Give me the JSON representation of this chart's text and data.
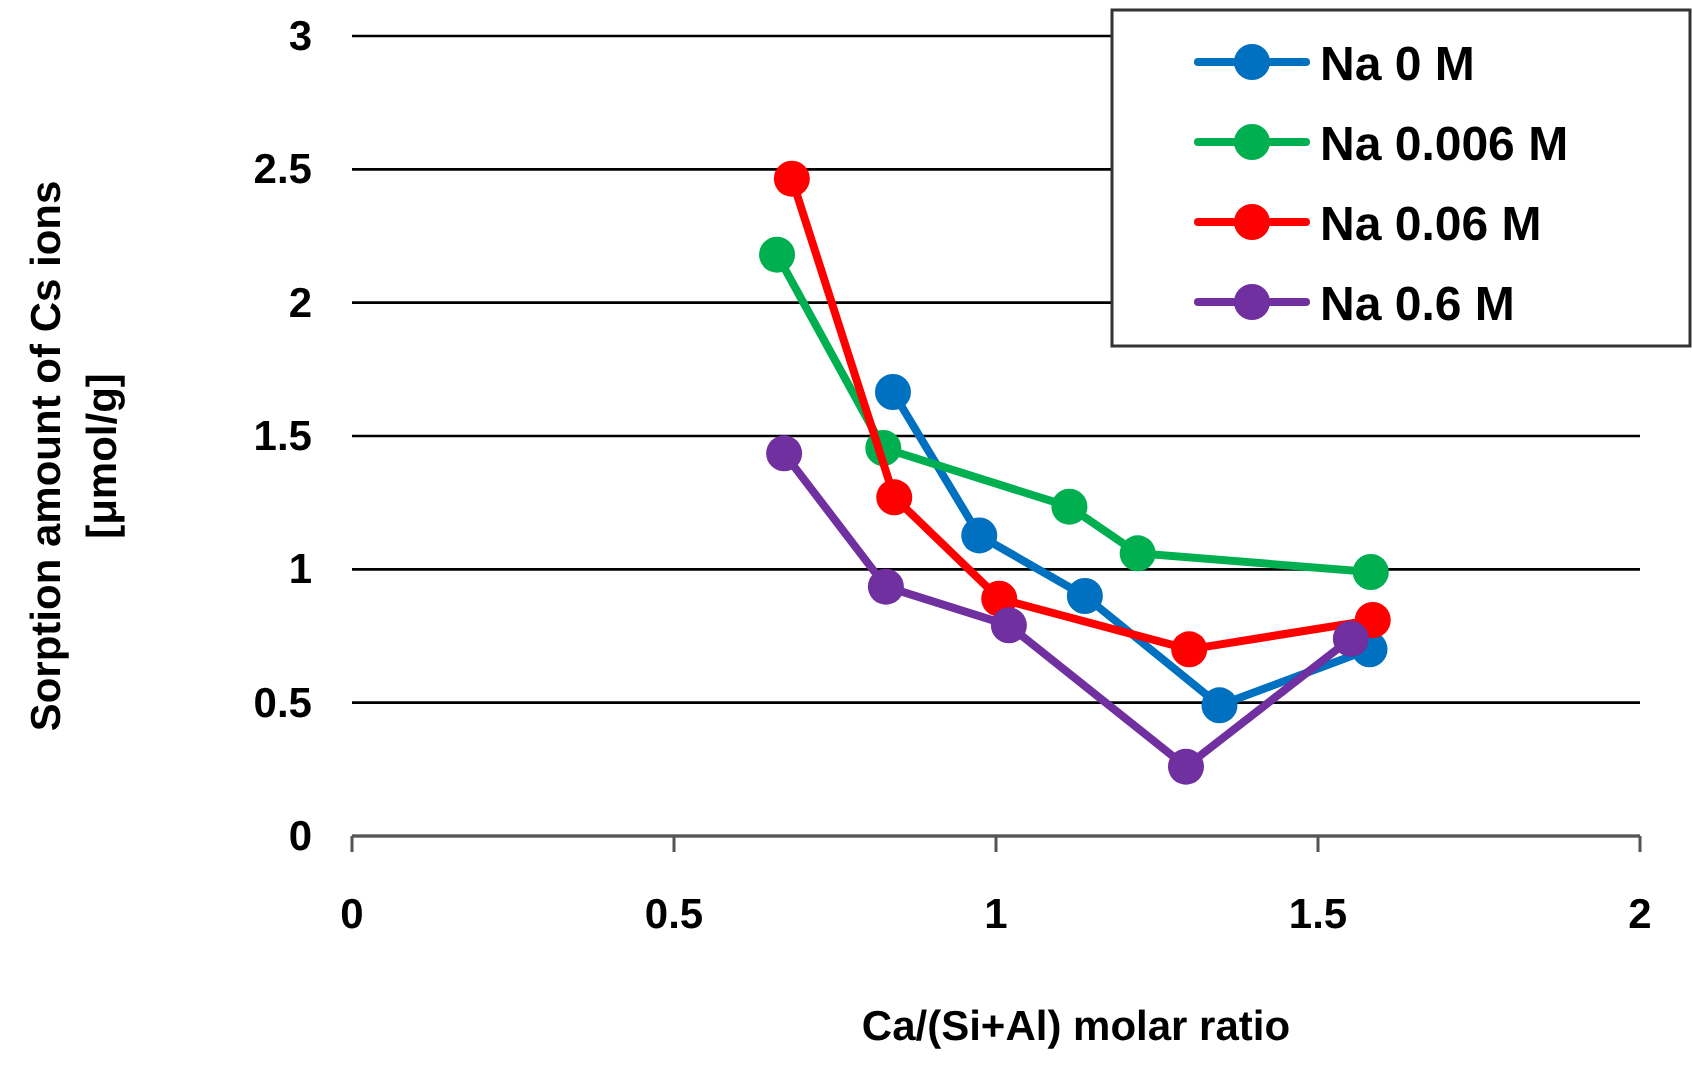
{
  "chart_data": {
    "type": "line",
    "xlabel": "Ca/(Si+Al) molar ratio",
    "ylabel": "Sorption amount of Cs ions\n[μmol/g]",
    "xlim": [
      0,
      2
    ],
    "xticks": [
      0,
      0.5,
      1,
      1.5,
      2
    ],
    "ylim": [
      0,
      3
    ],
    "yticks": [
      0,
      0.5,
      1,
      1.5,
      2,
      2.5,
      3
    ],
    "grid": "y",
    "legend": "top right",
    "marker": "circle",
    "line_style": "solid",
    "series": [
      {
        "name": "Na 0 M",
        "color": "#0070c0",
        "x": [
          0.84,
          0.974,
          1.138,
          1.347,
          1.58
        ],
        "values": [
          1.665,
          1.127,
          0.9,
          0.49,
          0.7
        ]
      },
      {
        "name": "Na 0.006 M",
        "color": "#00b050",
        "x": [
          0.66,
          0.825,
          1.114,
          1.22,
          1.582
        ],
        "values": [
          2.18,
          1.455,
          1.235,
          1.06,
          0.99
        ]
      },
      {
        "name": "Na 0.06 M",
        "color": "#ff0000",
        "x": [
          0.683,
          0.842,
          1.005,
          1.3,
          1.585
        ],
        "values": [
          2.465,
          1.27,
          0.89,
          0.7,
          0.81
        ]
      },
      {
        "name": "Na 0.6 M",
        "color": "#7030a0",
        "x": [
          0.671,
          0.829,
          1.02,
          1.295,
          1.551
        ],
        "values": [
          1.435,
          0.935,
          0.79,
          0.26,
          0.74
        ]
      }
    ]
  }
}
